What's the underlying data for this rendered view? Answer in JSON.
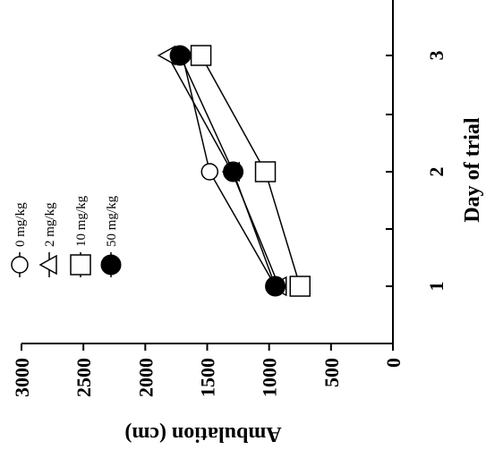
{
  "chart_data": {
    "type": "line",
    "orientation": "rotated-90-ccw",
    "xlabel": "Day of trial",
    "ylabel": "Ambulation (cm)",
    "categories": [
      "1",
      "2",
      "3"
    ],
    "x_ticks": [
      "1",
      "2",
      "3"
    ],
    "y_ticks": [
      "0",
      "500",
      "1000",
      "1500",
      "2000",
      "2500",
      "3000"
    ],
    "ylim": [
      0,
      3000
    ],
    "grid": false,
    "legend_position": "top-left",
    "series": [
      {
        "name": "0 mg/kg",
        "marker": "circle-open",
        "values": [
          950,
          1480,
          1700
        ]
      },
      {
        "name": "2 mg/kg",
        "marker": "triangle-open",
        "values": [
          920,
          1300,
          1820
        ]
      },
      {
        "name": "10 mg/kg",
        "marker": "square-open",
        "values": [
          750,
          1030,
          1550
        ]
      },
      {
        "name": "50 mg/kg",
        "marker": "circle-filled",
        "values": [
          950,
          1290,
          1720
        ]
      }
    ]
  }
}
